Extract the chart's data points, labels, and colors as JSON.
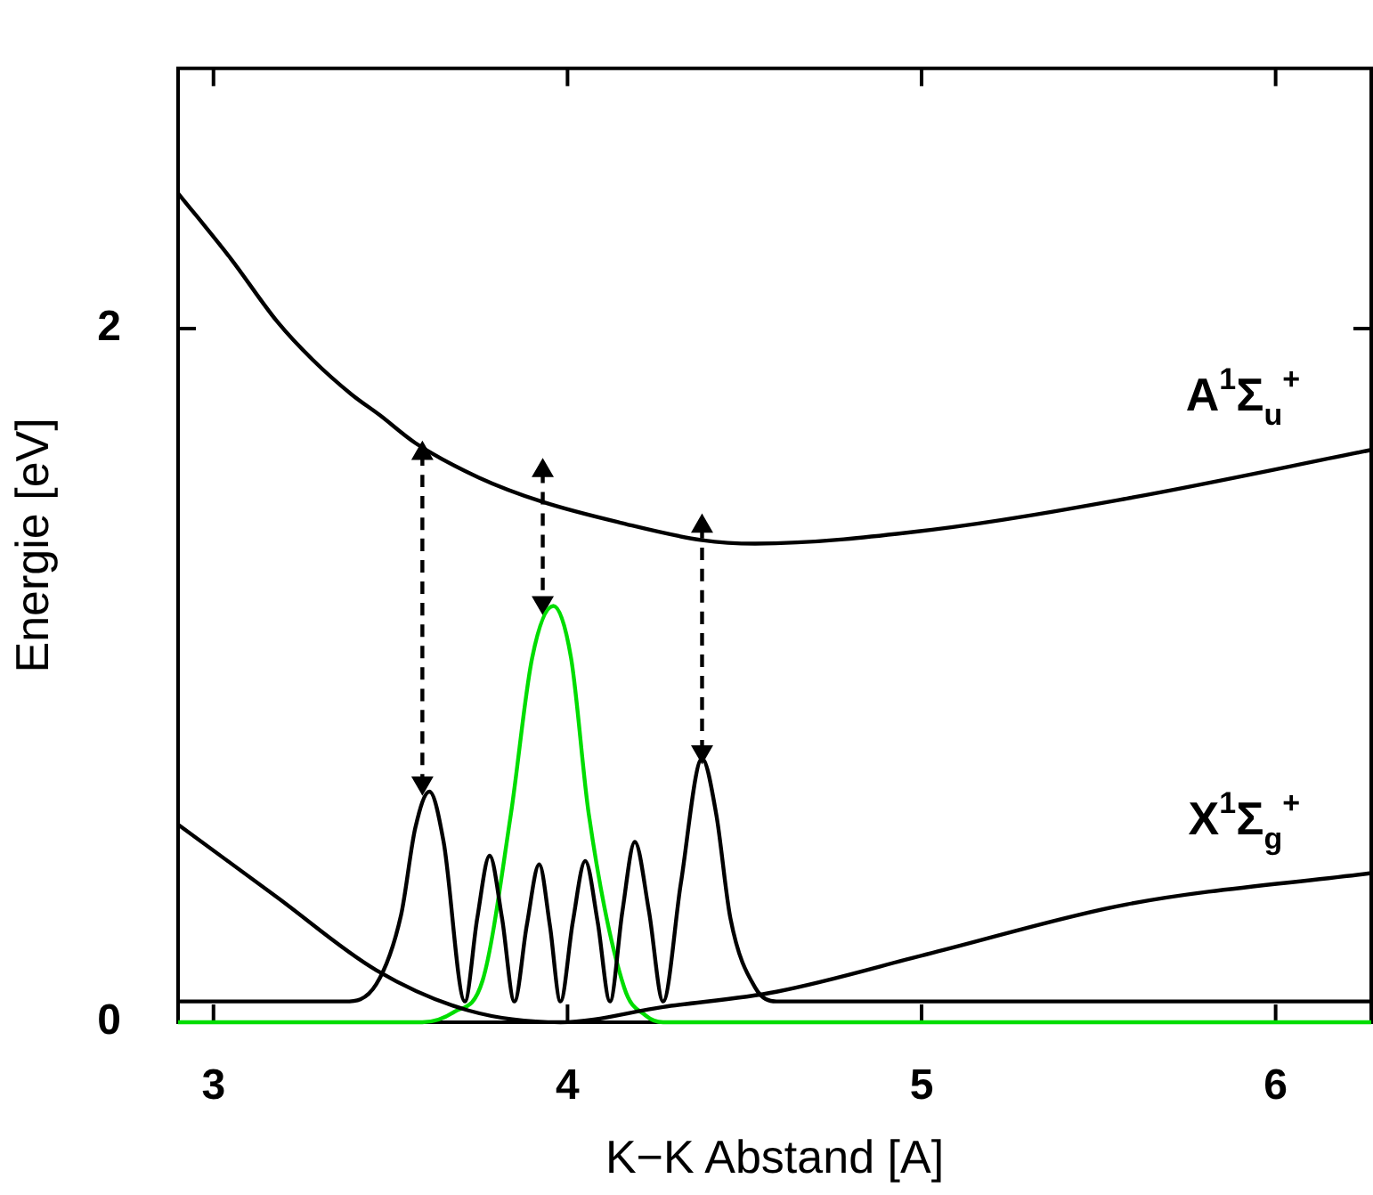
{
  "chart_data": {
    "type": "line",
    "xlabel": "K−K Abstand [A]",
    "ylabel": "Energie [eV]",
    "xlim": [
      2.9,
      6.27
    ],
    "ylim": [
      0,
      2.75
    ],
    "xticks": [
      3,
      4,
      5,
      6
    ],
    "yticks": [
      0,
      2
    ],
    "grid": false,
    "legend": false,
    "marker": "none",
    "series": [
      {
        "name": "A$^{1}$Σ$_{u}$$^{+}$",
        "color": "#000000",
        "x": [
          2.9,
          3.05,
          3.18,
          3.28,
          3.39,
          3.47,
          3.57,
          3.75,
          3.93,
          4.15,
          4.38,
          4.53,
          5.03,
          5.58,
          6.27
        ],
        "values": [
          2.39,
          2.2,
          2.02,
          1.91,
          1.81,
          1.75,
          1.67,
          1.57,
          1.5,
          1.44,
          1.39,
          1.38,
          1.42,
          1.51,
          1.65
        ]
      },
      {
        "name": "X$^{1}$Σ$_{g}$$^{+}$",
        "color": "#000000",
        "x": [
          2.9,
          3.18,
          3.46,
          3.72,
          3.98,
          4.27,
          4.59,
          5.03,
          5.58,
          6.27
        ],
        "values": [
          0.57,
          0.36,
          0.15,
          0.034,
          0.0,
          0.044,
          0.088,
          0.2,
          0.34,
          0.43
        ]
      },
      {
        "color": "#000000",
        "x": [
          2.9,
          3.37,
          3.46,
          3.53,
          3.57,
          3.61,
          3.65,
          3.71,
          3.745,
          3.78,
          3.815,
          3.85,
          3.885,
          3.92,
          3.95,
          3.98,
          4.015,
          4.05,
          4.085,
          4.12,
          4.155,
          4.19,
          4.23,
          4.27,
          4.32,
          4.38,
          4.42,
          4.46,
          4.53,
          4.59,
          6.27
        ],
        "values": [
          0.06,
          0.06,
          0.11,
          0.31,
          0.56,
          0.665,
          0.52,
          0.06,
          0.3,
          0.48,
          0.3,
          0.06,
          0.28,
          0.455,
          0.28,
          0.06,
          0.29,
          0.465,
          0.29,
          0.06,
          0.32,
          0.52,
          0.32,
          0.06,
          0.4,
          0.76,
          0.6,
          0.3,
          0.1,
          0.06,
          0.06
        ]
      },
      {
        "color": "#00dd00",
        "x": [
          2.9,
          3.59,
          3.68,
          3.76,
          3.84,
          3.9,
          3.96,
          4.01,
          4.06,
          4.16,
          4.22,
          4.27,
          6.27
        ],
        "values": [
          0,
          0,
          0.03,
          0.12,
          0.6,
          1.05,
          1.2,
          1.05,
          0.6,
          0.1,
          0.02,
          0,
          0
        ]
      },
      {
        "color": "#000000",
        "marker": "triangle",
        "line_style": "dashed",
        "x": [
          3.59,
          3.59
        ],
        "values": [
          1.64,
          0.69
        ]
      },
      {
        "color": "#000000",
        "marker": "triangle",
        "line_style": "dashed",
        "x": [
          3.93,
          3.93
        ],
        "values": [
          1.59,
          1.21
        ]
      },
      {
        "color": "#000000",
        "marker": "triangle",
        "line_style": "dashed",
        "x": [
          4.38,
          4.38
        ],
        "values": [
          1.43,
          0.78
        ]
      }
    ]
  }
}
